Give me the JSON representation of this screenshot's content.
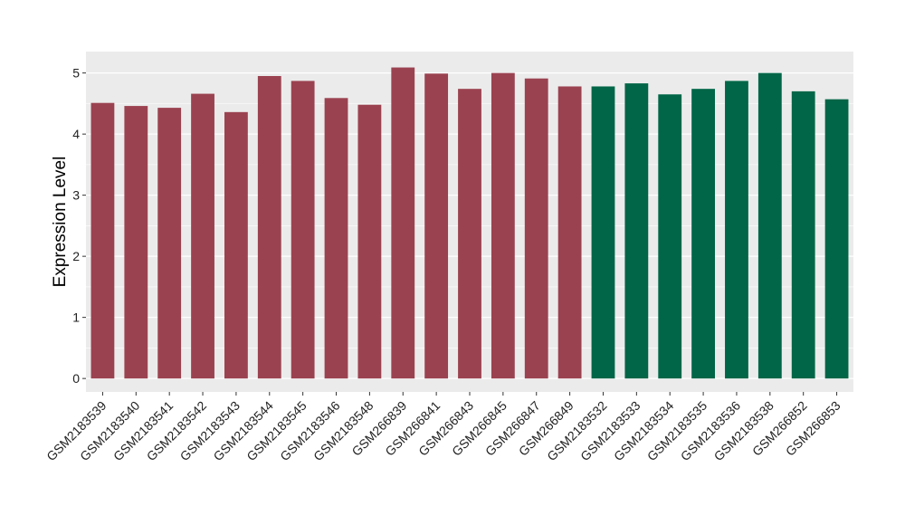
{
  "chart_data": {
    "type": "bar",
    "title": "",
    "xlabel": "",
    "ylabel": "Expression Level",
    "ylim": [
      -0.22,
      5.35
    ],
    "yticks": [
      0,
      1,
      2,
      3,
      4,
      5
    ],
    "grid": true,
    "background": "#ebebeb",
    "gridline_color": "#ffffff",
    "categories": [
      "GSM2183539",
      "GSM2183540",
      "GSM2183541",
      "GSM2183542",
      "GSM2183543",
      "GSM2183544",
      "GSM2183545",
      "GSM2183546",
      "GSM2183548",
      "GSM266839",
      "GSM266841",
      "GSM266843",
      "GSM266845",
      "GSM266847",
      "GSM266849",
      "GSM2183532",
      "GSM2183533",
      "GSM2183534",
      "GSM2183535",
      "GSM2183536",
      "GSM2183538",
      "GSM266852",
      "GSM266853"
    ],
    "values": [
      4.51,
      4.46,
      4.43,
      4.66,
      4.36,
      4.95,
      4.87,
      4.59,
      4.48,
      5.09,
      4.99,
      4.74,
      5.0,
      4.91,
      4.78,
      4.78,
      4.83,
      4.65,
      4.74,
      4.87,
      5.0,
      4.7,
      4.57
    ],
    "bar_colors": [
      "#9b4250",
      "#9b4250",
      "#9b4250",
      "#9b4250",
      "#9b4250",
      "#9b4250",
      "#9b4250",
      "#9b4250",
      "#9b4250",
      "#9b4250",
      "#9b4250",
      "#9b4250",
      "#9b4250",
      "#9b4250",
      "#9b4250",
      "#006647",
      "#006647",
      "#006647",
      "#006647",
      "#006647",
      "#006647",
      "#006647",
      "#006647"
    ]
  }
}
